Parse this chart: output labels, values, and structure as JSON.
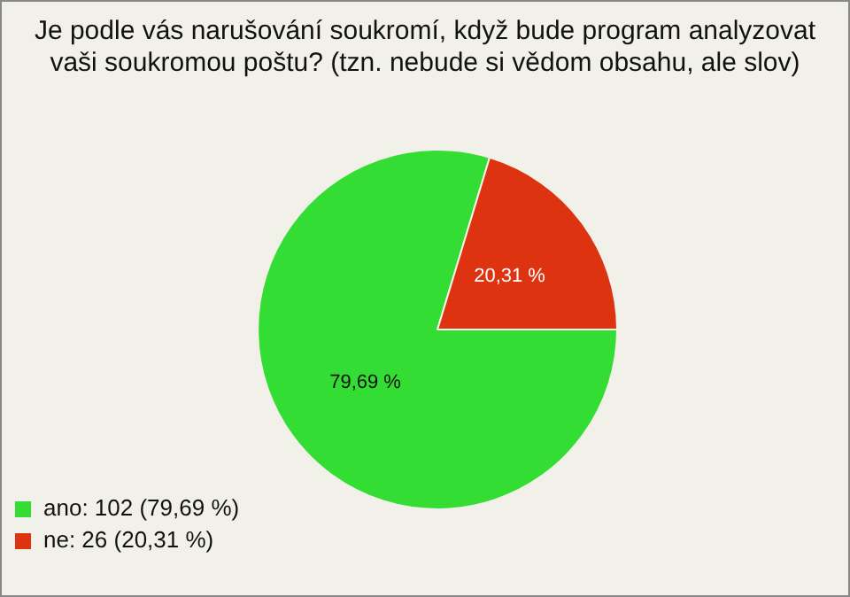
{
  "chart_data": {
    "type": "pie",
    "title": "Je podle vás narušování soukromí, když bude program analyzovat vaši soukromou poštu? (tzn. nebude si vědom obsahu, ale slov)",
    "categories": [
      "ano: 102 (79,69 %)",
      "ne: 26 (20,31 %)"
    ],
    "values": [
      79.69,
      20.31
    ],
    "colors": [
      "#33dd33",
      "#dd3311"
    ],
    "value_labels": [
      "79,69 %",
      "20,31 %"
    ],
    "legend": "bottom left"
  }
}
